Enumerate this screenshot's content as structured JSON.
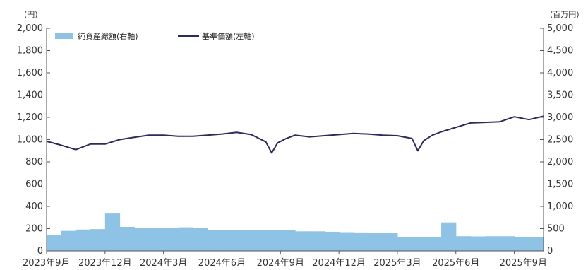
{
  "chart_data": {
    "type": "bar+line",
    "title": "",
    "left_axis": {
      "unit": "(円)",
      "ylim": [
        0,
        2000
      ],
      "ticks": [
        "0",
        "200",
        "400",
        "600",
        "800",
        "1,000",
        "1,200",
        "1,400",
        "1,600",
        "1,800",
        "2,000"
      ]
    },
    "right_axis": {
      "unit": "(百万円)",
      "ylim": [
        0,
        5000
      ],
      "ticks": [
        "0",
        "500",
        "1,000",
        "1,500",
        "2,000",
        "2,500",
        "3,000",
        "3,500",
        "4,000",
        "4,500",
        "5,000"
      ]
    },
    "x_tick_labels": [
      "2023年9月",
      "2023年12月",
      "2024年3月",
      "2024年6月",
      "2024年9月",
      "2024年12月",
      "2025年3月",
      "2025年6月",
      "2025年9月"
    ],
    "legend_placement": "top-left",
    "grid": false,
    "colors": {
      "bars": "#8ec3e6",
      "line": "#2b2b5c",
      "axis": "#555555"
    },
    "series": [
      {
        "name": "純資産総額(右軸)",
        "kind": "bar",
        "axis": "right",
        "x": [
          0,
          0.25,
          0.5,
          0.75,
          1,
          1.25,
          1.5,
          1.75,
          2,
          2.25,
          2.5,
          2.75,
          3,
          3.25,
          3.5,
          3.75,
          4,
          4.25,
          4.5,
          4.75,
          5,
          5.25,
          5.5,
          5.75,
          6,
          6.25,
          6.5,
          6.75,
          7,
          7.25,
          7.5,
          7.75,
          8,
          8.25
        ],
        "values": [
          350,
          450,
          480,
          490,
          840,
          540,
          520,
          520,
          520,
          530,
          520,
          470,
          470,
          460,
          460,
          460,
          460,
          440,
          440,
          430,
          420,
          415,
          410,
          410,
          315,
          315,
          305,
          640,
          330,
          325,
          330,
          330,
          315,
          310
        ]
      },
      {
        "name": "基準価額(左軸)",
        "kind": "line",
        "axis": "left",
        "x": [
          0,
          0.25,
          0.5,
          0.75,
          1,
          1.25,
          1.5,
          1.75,
          2,
          2.25,
          2.5,
          2.75,
          3,
          3.25,
          3.5,
          3.75,
          3.85,
          3.95,
          4.1,
          4.25,
          4.5,
          4.75,
          5,
          5.25,
          5.5,
          5.75,
          6,
          6.25,
          6.35,
          6.45,
          6.6,
          6.75,
          7,
          7.25,
          7.5,
          7.75,
          8,
          8.25,
          8.5
        ],
        "values": [
          985,
          950,
          910,
          960,
          960,
          1000,
          1020,
          1040,
          1040,
          1030,
          1030,
          1040,
          1050,
          1065,
          1045,
          980,
          880,
          970,
          1010,
          1040,
          1025,
          1035,
          1045,
          1055,
          1050,
          1040,
          1035,
          1010,
          900,
          990,
          1040,
          1070,
          1110,
          1150,
          1155,
          1160,
          1205,
          1180,
          1210
        ]
      }
    ]
  }
}
